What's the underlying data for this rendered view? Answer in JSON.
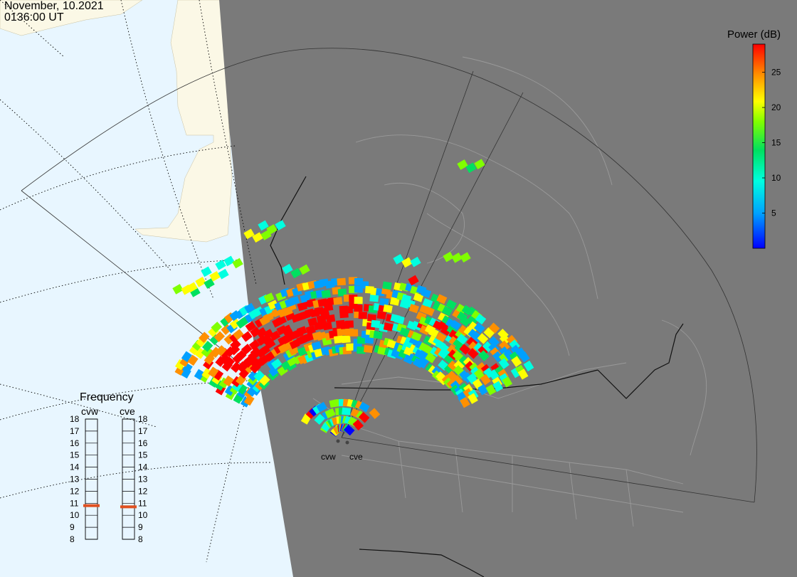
{
  "header": {
    "date": "November, 10.2021",
    "time": "0136:00 UT"
  },
  "legend": {
    "title": "Power (dB)",
    "ticks": [
      "25",
      "20",
      "15",
      "10",
      "5"
    ],
    "tick_values": [
      25,
      20,
      15,
      10,
      5
    ],
    "range": [
      0,
      29
    ],
    "colors": [
      "#0000ff",
      "#00a0ff",
      "#00ffe0",
      "#00e060",
      "#80ff00",
      "#ffff00",
      "#ff9000",
      "#ff0000"
    ]
  },
  "frequency_panel": {
    "title": "Frequency",
    "radars": [
      {
        "name": "cvw",
        "frequency": 10.8
      },
      {
        "name": "cve",
        "frequency": 10.7
      }
    ],
    "scale": [
      "18",
      "17",
      "16",
      "15",
      "14",
      "13",
      "12",
      "11",
      "10",
      "9",
      "8"
    ],
    "scale_values": [
      18,
      17,
      16,
      15,
      14,
      13,
      12,
      11,
      10,
      9,
      8
    ],
    "marker_color": "#e05020"
  },
  "sites": [
    {
      "name": "cvw"
    },
    {
      "name": "cve"
    }
  ],
  "colors": {
    "ocean": "#e8f6ff",
    "land_day": "#fbf8e6",
    "night": "#7a7a7a"
  }
}
